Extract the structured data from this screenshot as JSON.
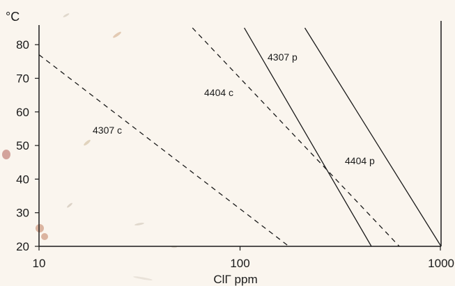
{
  "chart_data": {
    "type": "line",
    "title": "",
    "xlabel": "ClΓ ppm",
    "ylabel": "°C",
    "xscale": "log",
    "xlim": [
      10,
      1000
    ],
    "ylim": [
      20,
      85
    ],
    "xticks": [
      "10",
      "100",
      "1000"
    ],
    "yticks": [
      "20",
      "30",
      "40",
      "50",
      "60",
      "70",
      "80"
    ],
    "grid": false,
    "legend": "none (series labelled inline)",
    "series": [
      {
        "name": "4307 c",
        "style": "dashed",
        "x": [
          10,
          175
        ],
        "y": [
          77,
          20
        ]
      },
      {
        "name": "4404 c",
        "style": "dashed",
        "x": [
          58,
          620
        ],
        "y": [
          85,
          20
        ]
      },
      {
        "name": "4307 p",
        "style": "solid",
        "x": [
          105,
          450
        ],
        "y": [
          85,
          20
        ]
      },
      {
        "name": "4404 p",
        "style": "solid",
        "x": [
          210,
          1000
        ],
        "y": [
          85,
          20
        ]
      }
    ],
    "colors": {
      "line": "#1a1a1a",
      "axis": "#1a1a1a",
      "background": "#faf5ee"
    }
  }
}
